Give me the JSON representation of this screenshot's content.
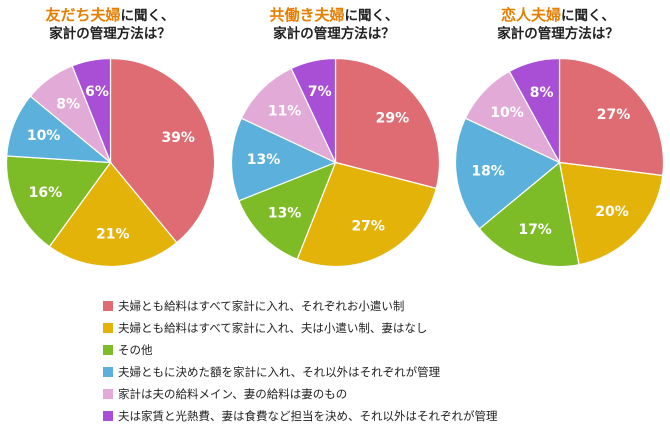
{
  "colors": [
    "#e06c73",
    "#e4b30a",
    "#7dbb27",
    "#5bb0dc",
    "#e2aad6",
    "#a84fd6"
  ],
  "legend": [
    "夫婦とも給料はすべて家計に入れ、それぞれお小遣い制",
    "夫婦とも給料はすべて家計に入れ、夫は小遣い制、妻はなし",
    "その他",
    "夫婦ともに決めた額を家計に入れ、それ以外はそれぞれが管理",
    "家計は夫の給料メイン、妻の給料は妻のもの",
    "夫は家賃と光熱費、妻は食費など担当を決め、それ以外はそれぞれが管理"
  ],
  "chart_data": [
    {
      "type": "pie",
      "title_highlight": "友だち夫婦",
      "title_rest": "に聞く、",
      "title_line2": "家計の管理方法は？",
      "categories": [
        "夫婦とも給料はすべて家計に入れ、それぞれお小遣い制",
        "夫婦とも給料はすべて家計に入れ、夫は小遣い制、妻はなし",
        "その他",
        "夫婦ともに決めた額を家計に入れ、それ以外はそれぞれが管理",
        "家計は夫の給料メイン、妻の給料は妻のもの",
        "夫は家賃と光熱費、妻は食費など担当を決め、それ以外はそれぞれが管理"
      ],
      "values": [
        39,
        21,
        16,
        10,
        8,
        6
      ],
      "labels": [
        "39%",
        "21%",
        "16%",
        "10%",
        "8%",
        "6%"
      ]
    },
    {
      "type": "pie",
      "title_highlight": "共働き夫婦",
      "title_rest": "に聞く、",
      "title_line2": "家計の管理方法は？",
      "categories": [
        "夫婦とも給料はすべて家計に入れ、それぞれお小遣い制",
        "夫婦とも給料はすべて家計に入れ、夫は小遣い制、妻はなし",
        "その他",
        "夫婦ともに決めた額を家計に入れ、それ以外はそれぞれが管理",
        "家計は夫の給料メイン、妻の給料は妻のもの",
        "夫は家賃と光熱費、妻は食費など担当を決め、それ以外はそれぞれが管理"
      ],
      "values": [
        29,
        27,
        13,
        13,
        11,
        7
      ],
      "labels": [
        "29%",
        "27%",
        "13%",
        "13%",
        "11%",
        "7%"
      ]
    },
    {
      "type": "pie",
      "title_highlight": "恋人夫婦",
      "title_rest": "に聞く、",
      "title_line2": "家計の管理方法は？",
      "categories": [
        "夫婦とも給料はすべて家計に入れ、それぞれお小遣い制",
        "夫婦とも給料はすべて家計に入れ、夫は小遣い制、妻はなし",
        "その他",
        "夫婦ともに決めた額を家計に入れ、それ以外はそれぞれが管理",
        "家計は夫の給料メイン、妻の給料は妻のもの",
        "夫は家賃と光熱費、妻は食費など担当を決め、それ以外はそれぞれが管理"
      ],
      "values": [
        27,
        20,
        17,
        18,
        10,
        8
      ],
      "labels": [
        "27%",
        "20%",
        "17%",
        "18%",
        "10%",
        "8%"
      ]
    }
  ]
}
